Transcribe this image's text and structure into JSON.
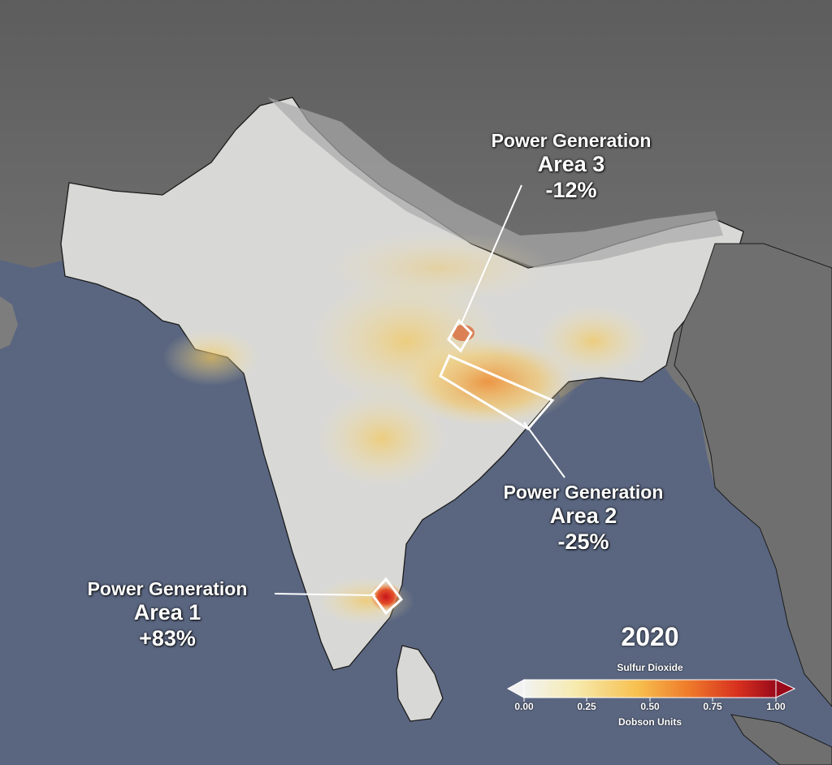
{
  "map": {
    "year": "2020",
    "variable": "Sulfur Dioxide",
    "units": "Dobson Units",
    "colors": {
      "ocean": "#5a6680",
      "land_outside": "#7a7a7a",
      "land_india": "#d6d6d4",
      "border": "#111111",
      "box_outline": "#ffffff"
    }
  },
  "annotations": [
    {
      "id": "area1",
      "title": "Power Generation",
      "area": "Area 1",
      "change": "+83%"
    },
    {
      "id": "area2",
      "title": "Power Generation",
      "area": "Area 2",
      "change": "-25%"
    },
    {
      "id": "area3",
      "title": "Power Generation",
      "area": "Area 3",
      "change": "-12%"
    }
  ],
  "colorbar": {
    "ticks": [
      "0.00",
      "0.25",
      "0.50",
      "0.75",
      "1.00"
    ],
    "stops": [
      "#f2f2f2",
      "#f6ebb0",
      "#f7c04f",
      "#ef7c2b",
      "#d7301f",
      "#990a1a"
    ]
  }
}
